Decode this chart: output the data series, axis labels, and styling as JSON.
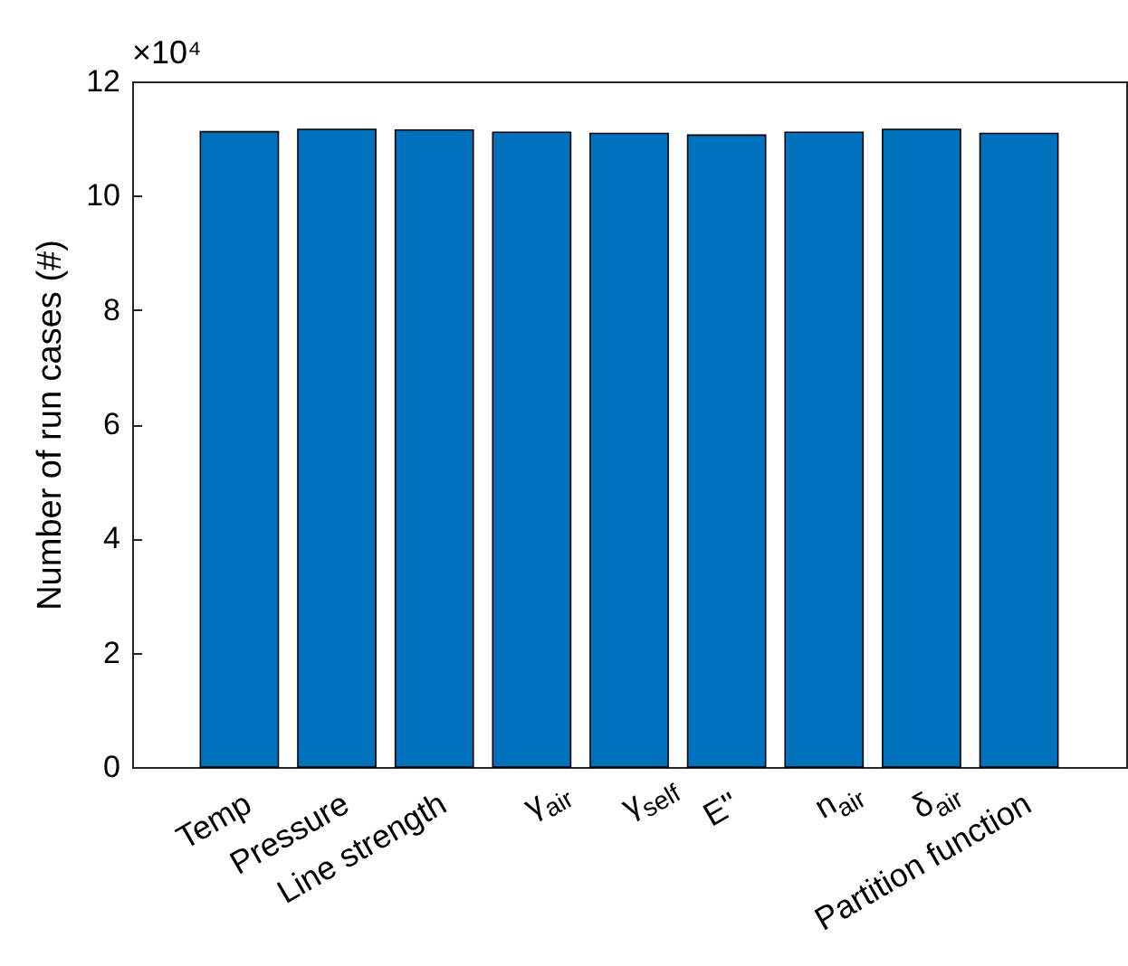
{
  "chart_data": {
    "type": "bar",
    "ylabel": "Number of run cases (#)",
    "annotations": [
      "×10⁴"
    ],
    "categories": [
      "Temp",
      "Pressure",
      "Line strength",
      "γ$_{air}$",
      "γ$_{self}$",
      "E''",
      "n$_{air}$",
      "δ$_{air}$",
      "Partition function"
    ],
    "values": [
      11.12,
      11.16,
      11.15,
      11.11,
      11.09,
      11.06,
      11.11,
      11.16,
      11.09
    ],
    "color": "#0072bd",
    "ylim": [
      0,
      12
    ],
    "yticks": [
      0,
      2,
      4,
      6,
      8,
      10,
      12
    ]
  }
}
